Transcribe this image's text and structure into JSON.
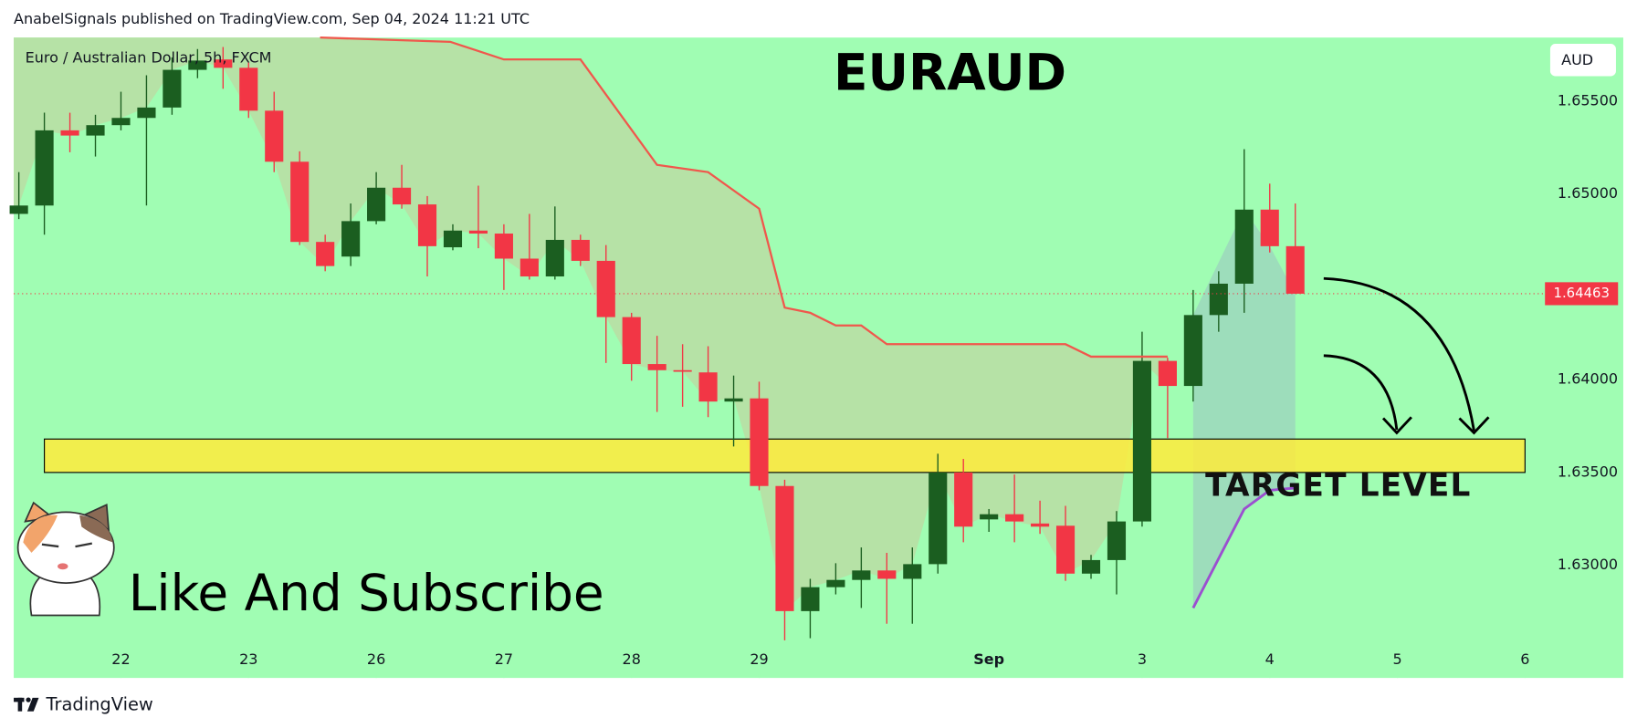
{
  "header": {
    "text": "AnabelSignals published on TradingView.com, Sep 04, 2024 11:21 UTC"
  },
  "footer": {
    "brand": "TradingView"
  },
  "chart_data": {
    "type": "candlestick",
    "symbol": "Euro / Australian Dollar, 5h, FXCM",
    "title": "EURAUD",
    "currency": "AUD",
    "annotations": {
      "target": "TARGET LEVEL",
      "promo": "Like And Subscribe"
    },
    "open": [
      1.64893,
      1.64938,
      1.65343,
      1.65315,
      1.65371,
      1.6541,
      1.65466,
      1.65669,
      1.65725,
      1.6568,
      1.65449,
      1.65174,
      1.64742,
      1.64663,
      1.64854,
      1.65034,
      1.64944,
      1.64713,
      1.64803,
      1.64787,
      1.64652,
      1.64556,
      1.64753,
      1.6464,
      1.64337,
      1.64084,
      1.64051,
      1.64039,
      1.63882,
      1.63899,
      1.63427,
      1.62753,
      1.62882,
      1.62921,
      1.62972,
      1.62927,
      1.63006,
      1.635,
      1.63247,
      1.63275,
      1.63225,
      1.63213,
      1.62955,
      1.63028,
      1.63236,
      1.64101,
      1.63966,
      1.64348,
      1.64517,
      1.64916,
      1.64719
    ],
    "high": [
      1.65118,
      1.65438,
      1.65438,
      1.65427,
      1.65551,
      1.6564,
      1.65736,
      1.65781,
      1.65792,
      1.65708,
      1.65551,
      1.6523,
      1.64781,
      1.64949,
      1.65118,
      1.65157,
      1.64989,
      1.64837,
      1.65045,
      1.64837,
      1.64893,
      1.64933,
      1.64781,
      1.64725,
      1.6436,
      1.64236,
      1.64191,
      1.6418,
      1.64022,
      1.63989,
      1.63461,
      1.62927,
      1.63011,
      1.63096,
      1.63067,
      1.63096,
      1.63601,
      1.63573,
      1.63303,
      1.63489,
      1.63348,
      1.6332,
      1.63056,
      1.63292,
      1.64258,
      1.64118,
      1.64483,
      1.64584,
      1.65242,
      1.65056,
      1.64949
    ],
    "low": [
      1.64865,
      1.64781,
      1.65225,
      1.65202,
      1.65343,
      1.64938,
      1.65427,
      1.65624,
      1.65567,
      1.6541,
      1.65118,
      1.64725,
      1.64584,
      1.64612,
      1.64837,
      1.64921,
      1.64556,
      1.64697,
      1.64708,
      1.64483,
      1.64539,
      1.64539,
      1.64612,
      1.6409,
      1.63994,
      1.63826,
      1.63854,
      1.63798,
      1.6364,
      1.63404,
      1.62596,
      1.62607,
      1.62843,
      1.6277,
      1.62685,
      1.62685,
      1.62955,
      1.63124,
      1.6318,
      1.63124,
      1.63169,
      1.62916,
      1.62927,
      1.62843,
      1.63208,
      1.63685,
      1.63882,
      1.64258,
      1.6436,
      1.64685,
      1.64463
    ],
    "close": [
      1.64938,
      1.65343,
      1.65315,
      1.65371,
      1.6541,
      1.65466,
      1.65669,
      1.65719,
      1.6568,
      1.65449,
      1.65174,
      1.64742,
      1.64612,
      1.64854,
      1.65034,
      1.64944,
      1.64719,
      1.64803,
      1.64787,
      1.64652,
      1.64556,
      1.64753,
      1.6464,
      1.64337,
      1.64084,
      1.64051,
      1.64045,
      1.63882,
      1.63899,
      1.63427,
      1.62753,
      1.62882,
      1.62921,
      1.62972,
      1.62927,
      1.63006,
      1.635,
      1.63208,
      1.63275,
      1.63236,
      1.63208,
      1.62955,
      1.63028,
      1.63236,
      1.64101,
      1.63966,
      1.64348,
      1.64517,
      1.64916,
      1.64719,
      1.64463
    ],
    "up_color": "#1b5e20",
    "down_color": "#f23645",
    "xlim": [
      -0.2,
      59.7
    ],
    "xticks": [
      {
        "value": 4,
        "label": "22"
      },
      {
        "value": 9,
        "label": "23"
      },
      {
        "value": 14,
        "label": "26"
      },
      {
        "value": 19,
        "label": "27"
      },
      {
        "value": 24,
        "label": "28"
      },
      {
        "value": 29,
        "label": "29"
      },
      {
        "value": 38,
        "label": "Sep"
      },
      {
        "value": 44,
        "label": "3"
      },
      {
        "value": 49,
        "label": "4"
      },
      {
        "value": 54,
        "label": "5"
      },
      {
        "value": 59,
        "label": "6"
      }
    ],
    "ylim": [
      1.62393,
      1.65843
    ],
    "yticks": [
      {
        "value": 1.63,
        "label": "1.63000"
      },
      {
        "value": 1.635,
        "label": "1.63500"
      },
      {
        "value": 1.64,
        "label": "1.64000"
      },
      {
        "value": 1.65,
        "label": "1.65000"
      },
      {
        "value": 1.655,
        "label": "1.65500"
      }
    ],
    "last_price": 1.64463,
    "trend_line": {
      "color": "#f0574c",
      "x": [
        11.8,
        16.9,
        19,
        22,
        25,
        27,
        29,
        30,
        31,
        32,
        33,
        34,
        41,
        42,
        45
      ],
      "values": [
        1.65843,
        1.6582,
        1.65725,
        1.65725,
        1.65157,
        1.65118,
        1.64921,
        1.64388,
        1.6436,
        1.64292,
        1.64292,
        1.64191,
        1.64191,
        1.64124,
        1.64124
      ]
    },
    "projection_line": {
      "color": "#9b4fd0",
      "x": [
        46,
        48,
        49,
        50
      ],
      "values": [
        1.6277,
        1.63303,
        1.63404,
        1.63416
      ]
    },
    "target_zone": {
      "x": [
        1,
        59
      ],
      "values": [
        1.635,
        1.6368
      ],
      "color": "#ffeb3b"
    }
  }
}
